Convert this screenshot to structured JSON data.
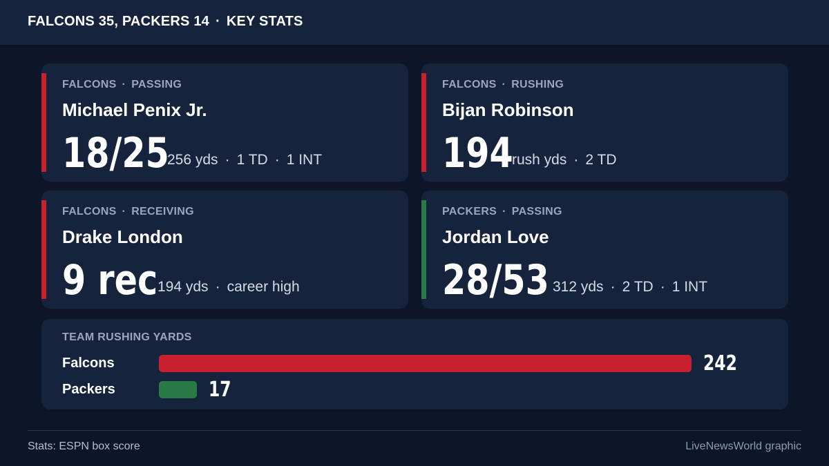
{
  "header": {
    "score": "FALCONS 35, PACKERS 14",
    "separator": "·",
    "section": "KEY STATS"
  },
  "cards": [
    {
      "team": "FALCONS",
      "category": "PASSING",
      "player": "Michael Penix Jr.",
      "big_stat": "18/25",
      "details": [
        "256 yds",
        "1 TD",
        "1 INT"
      ],
      "accent": "#c8202f"
    },
    {
      "team": "FALCONS",
      "category": "RUSHING",
      "player": "Bijan Robinson",
      "big_stat": "194",
      "details": [
        "rush yds",
        "2 TD"
      ],
      "accent": "#c8202f"
    },
    {
      "team": "FALCONS",
      "category": "RECEIVING",
      "player": "Drake London",
      "big_stat": "9 rec",
      "details": [
        "194 yds",
        "career high"
      ],
      "accent": "#c8202f"
    },
    {
      "team": "PACKERS",
      "category": "PASSING",
      "player": "Jordan Love",
      "big_stat": "28/53",
      "details": [
        "312 yds",
        "2 TD",
        "1 INT"
      ],
      "accent": "#2a7a46"
    }
  ],
  "rushing": {
    "title": "TEAM RUSHING YARDS",
    "max": 242,
    "teams": [
      {
        "name": "Falcons",
        "value": 242,
        "display": "242",
        "color": "#c8202f"
      },
      {
        "name": "Packers",
        "value": 17,
        "display": "17",
        "color": "#2a7a46"
      }
    ]
  },
  "footer": {
    "source": "Stats: ESPN box score",
    "credit": "LiveNewsWorld graphic"
  }
}
